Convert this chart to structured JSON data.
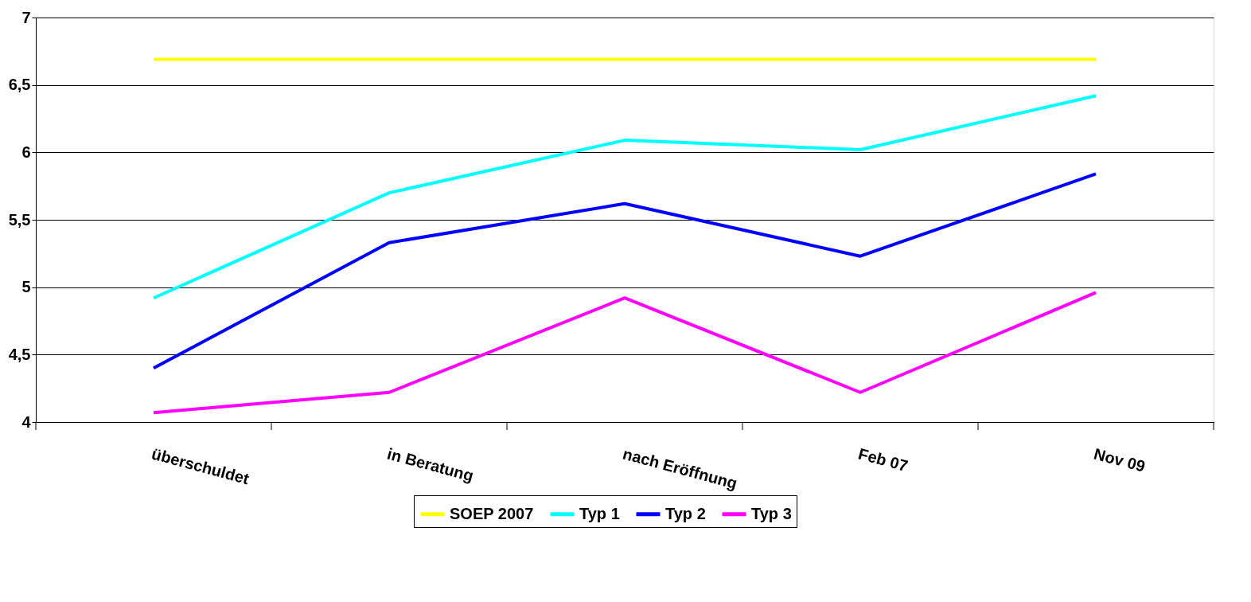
{
  "chart_data": {
    "type": "line",
    "categories": [
      "überschuldet",
      "in Beratung",
      "nach Eröffnung",
      "Feb 07",
      "Nov 09"
    ],
    "series": [
      {
        "name": "SOEP 2007",
        "color": "#ffff00",
        "values": [
          6.69,
          6.69,
          6.69,
          6.69,
          6.69
        ]
      },
      {
        "name": "Typ 1",
        "color": "#00ffff",
        "values": [
          4.92,
          5.7,
          6.09,
          6.02,
          6.42
        ]
      },
      {
        "name": "Typ 2",
        "color": "#0000ff",
        "values": [
          4.4,
          5.33,
          5.62,
          5.23,
          5.84
        ]
      },
      {
        "name": "Typ 3",
        "color": "#ff00ff",
        "values": [
          4.07,
          4.22,
          4.92,
          4.22,
          4.96
        ]
      }
    ],
    "ylim": [
      4,
      7
    ],
    "yticks": [
      4,
      {
        "value": 4.5,
        "label": "4,5"
      },
      5,
      {
        "value": 5.5,
        "label": "5,5"
      },
      6,
      {
        "value": 6.5,
        "label": "6,5"
      },
      7
    ],
    "grid": "y",
    "legend": "bottom",
    "marker": "none",
    "line_style": "solid"
  }
}
